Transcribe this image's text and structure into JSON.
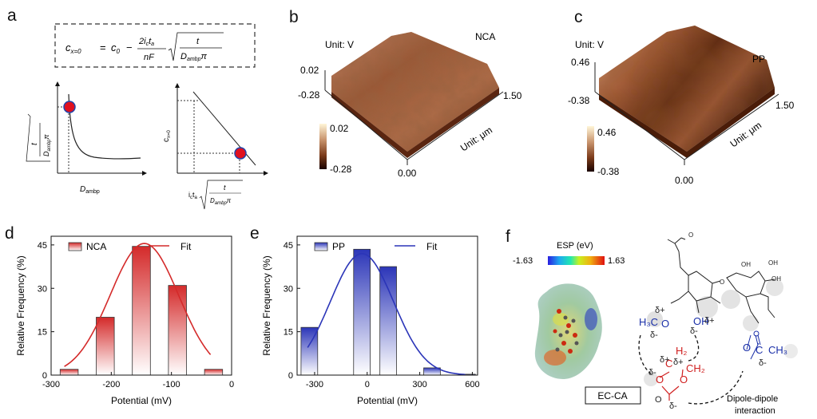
{
  "panel_a": {
    "label": "a",
    "equation": {
      "lhs_main": "c",
      "lhs_sub": "x=0",
      "c0": "c",
      "c0_sub": "0",
      "num": "2i",
      "num_sub": "c",
      "num2": "t",
      "num2_sub": "a",
      "den": "nF",
      "sqrt_num": "t",
      "sqrt_den": "D",
      "sqrt_den_sub": "ambp",
      "pi": "π"
    },
    "left_plot": {
      "xlabel": "D",
      "xlabel_sub": "ambp",
      "ylabel_num": "t",
      "ylabel_den": "D",
      "ylabel_den_sub": "ambp",
      "ylabel_pi": "π"
    },
    "right_plot": {
      "ylabel": "c",
      "ylabel_sub": "x=0",
      "xlabel": "i",
      "xlabel_sub": "c",
      "xlabel2": "t",
      "xlabel2_sub": "a",
      "sqrt_num": "t",
      "sqrt_den": "D",
      "sqrt_den_sub": "ambp",
      "pi": "π"
    }
  },
  "panel_b": {
    "label": "b",
    "title": "NCA",
    "unit_v": "Unit: V",
    "z_top": "0.02",
    "z_bottom": "-0.28",
    "x_max": "1.50",
    "origin": "0.00",
    "unit_um": "Unit: μm",
    "cb_top": "0.02",
    "cb_bottom": "-0.28"
  },
  "panel_c": {
    "label": "c",
    "title": "PP",
    "unit_v": "Unit: V",
    "z_top": "0.46",
    "z_bottom": "-0.38",
    "x_max": "1.50",
    "origin": "0.00",
    "unit_um": "Unit: μm",
    "cb_top": "0.46",
    "cb_bottom": "-0.38"
  },
  "panel_f": {
    "label": "f",
    "esp_title": "ESP (eV)",
    "esp_min": "-1.63",
    "esp_max": "1.63",
    "ec_ca": "EC-CA",
    "mol": {
      "h3c": "H₃C",
      "o1": "O",
      "oh": "OH",
      "o2": "O",
      "c": "C",
      "ch3": "CH₃",
      "h2": "H₂",
      "ch2": "CH₂",
      "o3": "O",
      "o4": "O",
      "dp1": "δ+",
      "dp2": "δ+",
      "dm1": "δ-",
      "dm2": "δ-",
      "dm3": "δ-",
      "dm4": "δ-",
      "dp3": "δ+",
      "dp4": "δ+",
      "oh_top1": "OH",
      "oh_top2": "OH",
      "oh_top3": "OH"
    },
    "dipole": "Dipole-dipole",
    "interaction": "interaction"
  },
  "chart_data": [
    {
      "panel": "d",
      "type": "bar",
      "label": "d",
      "xlabel": "Potential (mV)",
      "ylabel": "Relative Frequency (%)",
      "xlim": [
        -300,
        0
      ],
      "ylim": [
        0,
        48
      ],
      "xticks": [
        "-300",
        "-200",
        "-100",
        "0"
      ],
      "yticks": [
        "0",
        "15",
        "30",
        "45"
      ],
      "bins": [
        {
          "center": -270,
          "value": 2
        },
        {
          "center": -210,
          "value": 20
        },
        {
          "center": -150,
          "value": 44.5
        },
        {
          "center": -90,
          "value": 31
        },
        {
          "center": -30,
          "value": 2
        }
      ],
      "bin_width": 30,
      "fit": {
        "name": "Fit",
        "mean": -145,
        "sigma": 57,
        "amplitude": 45.5,
        "range": [
          -278,
          -35
        ]
      },
      "legend": [
        "NCA",
        "Fit"
      ],
      "color": "#d42a2a"
    },
    {
      "panel": "e",
      "type": "bar",
      "label": "e",
      "xlabel": "Potential (mV)",
      "ylabel": "Relative Frequency (%)",
      "xlim": [
        -400,
        630
      ],
      "ylim": [
        0,
        48
      ],
      "xticks": [
        "-300",
        "0",
        "300",
        "600"
      ],
      "yticks": [
        "0",
        "15",
        "30",
        "45"
      ],
      "bins": [
        {
          "center": -330,
          "value": 16.5
        },
        {
          "center": -30,
          "value": 43.5
        },
        {
          "center": 120,
          "value": 37.5
        },
        {
          "center": 370,
          "value": 2.5
        },
        {
          "center": 570,
          "value": 0.3
        }
      ],
      "bin_width": 95,
      "fit": {
        "name": "Fit",
        "mean": -30,
        "sigma": 180,
        "amplitude": 42,
        "range": [
          -340,
          560
        ]
      },
      "legend": [
        "PP",
        "Fit"
      ],
      "color": "#2b35b8"
    }
  ]
}
